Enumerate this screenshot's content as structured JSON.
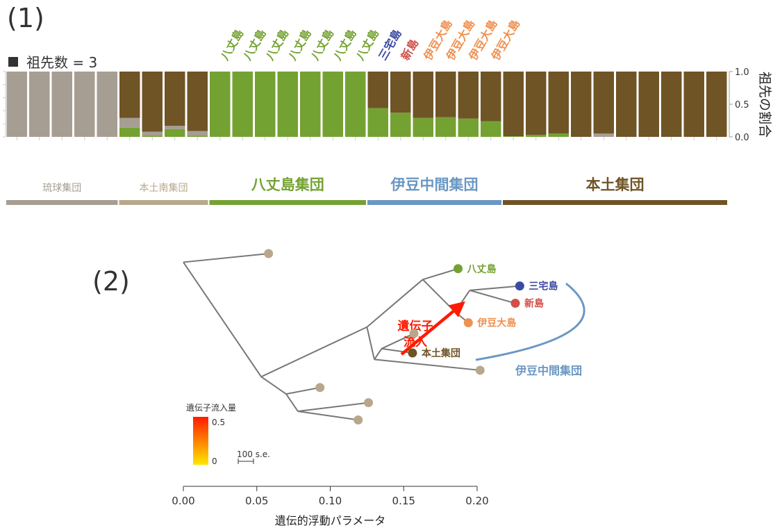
{
  "panels": {
    "p1": "(1)",
    "p2": "(2)"
  },
  "legend_k": "祖先数 = 3",
  "colors": {
    "ryukyu": "#a69d93",
    "mainland": "#6f5426",
    "hachijo": "#74a232",
    "tan": "#b9a78c",
    "blue": "#6a97c4",
    "miyake": "#3c4aa6",
    "niijima": "#d1504a",
    "izuoshima": "#f0904f",
    "tree": "#777777"
  },
  "chart_data": [
    {
      "type": "bar",
      "stacked": true,
      "ylabel": "祖先の割合",
      "ylim": [
        0,
        1
      ],
      "yticks": [
        "0.0",
        "0.5",
        "1.0"
      ],
      "series_colors": [
        "#74a232",
        "#a69d93",
        "#6f5426"
      ],
      "bars": [
        {
          "label": "",
          "green": 0.0,
          "gray": 1.0,
          "brown": 0.0
        },
        {
          "label": "",
          "green": 0.0,
          "gray": 1.0,
          "brown": 0.0
        },
        {
          "label": "",
          "green": 0.0,
          "gray": 1.0,
          "brown": 0.0
        },
        {
          "label": "",
          "green": 0.0,
          "gray": 1.0,
          "brown": 0.0
        },
        {
          "label": "",
          "green": 0.0,
          "gray": 1.0,
          "brown": 0.0
        },
        {
          "label": "",
          "green": 0.14,
          "gray": 0.15,
          "brown": 0.71
        },
        {
          "label": "",
          "green": 0.02,
          "gray": 0.06,
          "brown": 0.92
        },
        {
          "label": "",
          "green": 0.12,
          "gray": 0.05,
          "brown": 0.83
        },
        {
          "label": "",
          "green": 0.02,
          "gray": 0.07,
          "brown": 0.91
        },
        {
          "label": "八丈島",
          "green": 1.0,
          "gray": 0.0,
          "brown": 0.0
        },
        {
          "label": "八丈島",
          "green": 1.0,
          "gray": 0.0,
          "brown": 0.0
        },
        {
          "label": "八丈島",
          "green": 1.0,
          "gray": 0.0,
          "brown": 0.0
        },
        {
          "label": "八丈島",
          "green": 1.0,
          "gray": 0.0,
          "brown": 0.0
        },
        {
          "label": "八丈島",
          "green": 1.0,
          "gray": 0.0,
          "brown": 0.0
        },
        {
          "label": "八丈島",
          "green": 1.0,
          "gray": 0.0,
          "brown": 0.0
        },
        {
          "label": "八丈島",
          "green": 1.0,
          "gray": 0.0,
          "brown": 0.0
        },
        {
          "label": "三宅島",
          "green": 0.44,
          "gray": 0.0,
          "brown": 0.56
        },
        {
          "label": "新島",
          "green": 0.37,
          "gray": 0.0,
          "brown": 0.63
        },
        {
          "label": "伊豆大島",
          "green": 0.29,
          "gray": 0.0,
          "brown": 0.71
        },
        {
          "label": "伊豆大島",
          "green": 0.3,
          "gray": 0.0,
          "brown": 0.7
        },
        {
          "label": "伊豆大島",
          "green": 0.28,
          "gray": 0.0,
          "brown": 0.72
        },
        {
          "label": "伊豆大島",
          "green": 0.24,
          "gray": 0.0,
          "brown": 0.76
        },
        {
          "label": "",
          "green": 0.01,
          "gray": 0.0,
          "brown": 0.99
        },
        {
          "label": "",
          "green": 0.03,
          "gray": 0.0,
          "brown": 0.97
        },
        {
          "label": "",
          "green": 0.05,
          "gray": 0.0,
          "brown": 0.95
        },
        {
          "label": "",
          "green": 0.0,
          "gray": 0.0,
          "brown": 1.0
        },
        {
          "label": "",
          "green": 0.0,
          "gray": 0.05,
          "brown": 0.95
        },
        {
          "label": "",
          "green": 0.0,
          "gray": 0.0,
          "brown": 1.0
        },
        {
          "label": "",
          "green": 0.0,
          "gray": 0.0,
          "brown": 1.0
        },
        {
          "label": "",
          "green": 0.0,
          "gray": 0.0,
          "brown": 1.0
        },
        {
          "label": "",
          "green": 0.0,
          "gray": 0.0,
          "brown": 1.0
        },
        {
          "label": "",
          "green": 0.0,
          "gray": 0.0,
          "brown": 1.0
        }
      ],
      "groups": [
        {
          "name": "琉球集団",
          "start": 0,
          "end": 4,
          "color": "#a69d93",
          "size": "small"
        },
        {
          "name": "本土南集団",
          "start": 5,
          "end": 8,
          "color": "#b9a78c",
          "size": "small"
        },
        {
          "name": "八丈島集団",
          "start": 9,
          "end": 15,
          "color": "#74a232",
          "size": "large"
        },
        {
          "name": "伊豆中間集団",
          "start": 16,
          "end": 21,
          "color": "#6a97c4",
          "size": "large"
        },
        {
          "name": "本土集団",
          "start": 22,
          "end": 31,
          "color": "#6f5426",
          "size": "large"
        }
      ]
    },
    {
      "type": "tree",
      "xlabel": "遺伝的浮動パラメータ",
      "xlim": [
        0,
        0.2
      ],
      "xticks": [
        "0.00",
        "0.05",
        "0.10",
        "0.15",
        "0.20"
      ],
      "scale_bar_label": "100 s.e.",
      "legend_title": "遺伝子流入量",
      "legend_ticks": [
        "0.5",
        "0"
      ],
      "migration_label": [
        "遺伝子",
        "流入"
      ],
      "izu_bracket_label": "伊豆中間集団",
      "nodes": [
        {
          "id": "root",
          "x": 0.0,
          "y": 0.04
        },
        {
          "id": "n1",
          "x": 0.053,
          "y": 0.57
        },
        {
          "id": "n2",
          "x": 0.07,
          "y": 0.65
        },
        {
          "id": "n3",
          "x": 0.078,
          "y": 0.73
        },
        {
          "id": "n4",
          "x": 0.125,
          "y": 0.34
        },
        {
          "id": "n5",
          "x": 0.13,
          "y": 0.49
        },
        {
          "id": "n6",
          "x": 0.135,
          "y": 0.44
        },
        {
          "id": "n7",
          "x": 0.163,
          "y": 0.12
        },
        {
          "id": "n8",
          "x": 0.185,
          "y": 0.27
        },
        {
          "id": "n9",
          "x": 0.195,
          "y": 0.17
        }
      ],
      "edges": [
        [
          "root",
          "L_top"
        ],
        [
          "root",
          "n1"
        ],
        [
          "n1",
          "n4"
        ],
        [
          "n1",
          "n2"
        ],
        [
          "n2",
          "L_a"
        ],
        [
          "n2",
          "n3"
        ],
        [
          "n3",
          "L_b"
        ],
        [
          "n3",
          "L_c"
        ],
        [
          "n4",
          "n7"
        ],
        [
          "n4",
          "n5"
        ],
        [
          "n5",
          "n6"
        ],
        [
          "n5",
          "L_d"
        ],
        [
          "n6",
          "L_e"
        ],
        [
          "n6",
          "mainland"
        ],
        [
          "n7",
          "hachijo"
        ],
        [
          "n7",
          "n8"
        ],
        [
          "n8",
          "izuoshima"
        ],
        [
          "n8",
          "n9"
        ],
        [
          "n9",
          "miyake"
        ],
        [
          "n9",
          "niijima"
        ]
      ],
      "leaves": [
        {
          "id": "L_top",
          "x": 0.058,
          "y": 0.0,
          "label": "",
          "color": "#b9a78c"
        },
        {
          "id": "L_a",
          "x": 0.093,
          "y": 0.62,
          "label": "",
          "color": "#b9a78c"
        },
        {
          "id": "L_b",
          "x": 0.126,
          "y": 0.69,
          "label": "",
          "color": "#b9a78c"
        },
        {
          "id": "L_c",
          "x": 0.119,
          "y": 0.77,
          "label": "",
          "color": "#b9a78c"
        },
        {
          "id": "L_d",
          "x": 0.202,
          "y": 0.54,
          "label": "",
          "color": "#b9a78c"
        },
        {
          "id": "L_e",
          "x": 0.157,
          "y": 0.37,
          "label": "",
          "color": "#b9a78c"
        },
        {
          "id": "mainland",
          "x": 0.156,
          "y": 0.46,
          "label": "本土集団",
          "color": "#6f5426"
        },
        {
          "id": "hachijo",
          "x": 0.187,
          "y": 0.07,
          "label": "八丈島",
          "color": "#74a232"
        },
        {
          "id": "izuoshima",
          "x": 0.194,
          "y": 0.32,
          "label": "伊豆大島",
          "color": "#f0904f"
        },
        {
          "id": "miyake",
          "x": 0.229,
          "y": 0.15,
          "label": "三宅島",
          "color": "#3c4aa6"
        },
        {
          "id": "niijima",
          "x": 0.226,
          "y": 0.23,
          "label": "新島",
          "color": "#d1504a"
        }
      ],
      "migration": {
        "from": "L_e",
        "to": "n8",
        "weight": 0.5
      }
    }
  ]
}
